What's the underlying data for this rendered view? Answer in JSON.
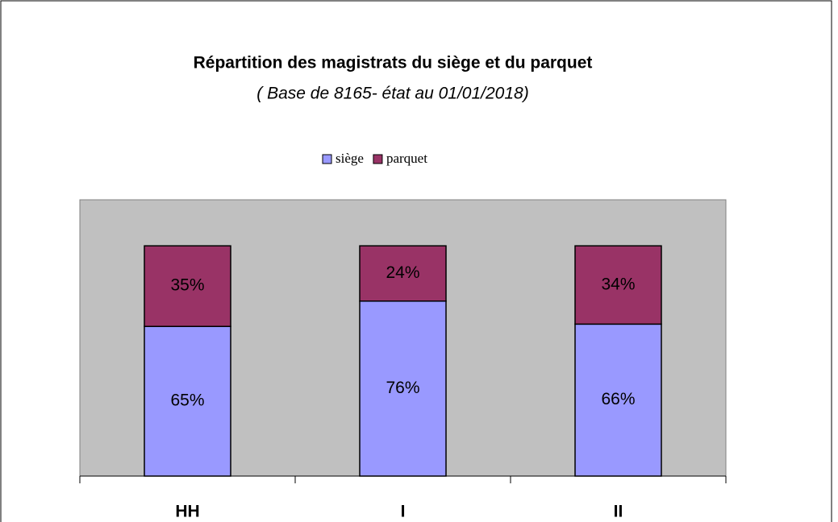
{
  "chart_data": {
    "type": "stacked_bar",
    "title": "Répartition des magistrats du siège et du parquet",
    "subtitle": "( Base de 8165- état au 01/01/2018)",
    "categories": [
      "HH",
      "I",
      "II"
    ],
    "series": [
      {
        "name": "siège",
        "color": "#9999ff",
        "values": [
          65,
          76,
          66
        ],
        "value_labels": [
          "65%",
          "76%",
          "66%"
        ]
      },
      {
        "name": "parquet",
        "color": "#993366",
        "values": [
          35,
          24,
          34
        ],
        "value_labels": [
          "35%",
          "24%",
          "34%"
        ]
      }
    ],
    "ylim": [
      0,
      120
    ],
    "legend": "top",
    "plot_background": "#c0c0c0"
  }
}
